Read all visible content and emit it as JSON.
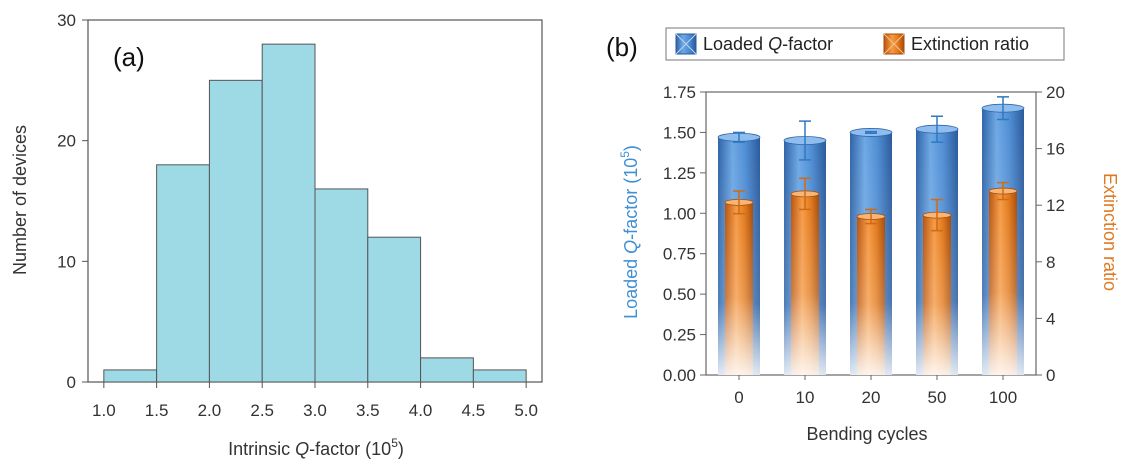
{
  "chart_data": [
    {
      "type": "bar",
      "panel_label": "(a)",
      "xlabel_prefix": "Intrinsic ",
      "xlabel_italic": "Q",
      "xlabel_mid": "-factor (10",
      "xlabel_sup": "5",
      "xlabel_suffix": ")",
      "ylabel": "Number of devices",
      "bin_edges": [
        1.0,
        1.5,
        2.0,
        2.5,
        3.0,
        3.5,
        4.0,
        4.5,
        5.0
      ],
      "values": [
        1,
        18,
        25,
        28,
        16,
        12,
        2,
        1
      ],
      "xticks": [
        "1.0",
        "1.5",
        "2.0",
        "2.5",
        "3.0",
        "3.5",
        "4.0",
        "4.5",
        "5.0"
      ],
      "yticks": [
        "0",
        "10",
        "20",
        "30"
      ],
      "ylim": [
        0,
        30
      ],
      "xlim": [
        0.85,
        5.15
      ],
      "bar_color": "#9ed9e6",
      "edge_color": "#555555"
    },
    {
      "type": "bar",
      "panel_label": "(b)",
      "xlabel": "Bending cycles",
      "categories": [
        "0",
        "10",
        "20",
        "50",
        "100"
      ],
      "ylabel_left_prefix": "Loaded ",
      "ylabel_left_italic": "Q",
      "ylabel_left_mid": "-factor (10",
      "ylabel_left_sup": "5",
      "ylabel_left_suffix": ")",
      "ylabel_right": "Extinction ratio",
      "yticks_left": [
        "0.00",
        "0.25",
        "0.50",
        "0.75",
        "1.00",
        "1.25",
        "1.50",
        "1.75"
      ],
      "yticks_right": [
        "0",
        "4",
        "8",
        "12",
        "16",
        "20"
      ],
      "ylim_left": [
        0,
        1.75
      ],
      "ylim_right": [
        0,
        20
      ],
      "legend_placement": "top",
      "series": [
        {
          "name_prefix": "Loaded ",
          "name_italic": "Q",
          "name_suffix": "-factor",
          "axis": "left",
          "color": "#3f7fc8",
          "values": [
            1.47,
            1.45,
            1.5,
            1.52,
            1.65
          ],
          "err": [
            0.03,
            0.12,
            0.005,
            0.08,
            0.07
          ]
        },
        {
          "name": "Extinction ratio",
          "axis": "right",
          "color": "#e27a1c",
          "values": [
            12.2,
            12.8,
            11.2,
            11.3,
            13.0
          ],
          "err": [
            0.8,
            1.1,
            0.5,
            1.1,
            0.6
          ]
        }
      ],
      "left_axis_color": "#3f8fd2",
      "right_axis_color": "#e07a22"
    }
  ]
}
